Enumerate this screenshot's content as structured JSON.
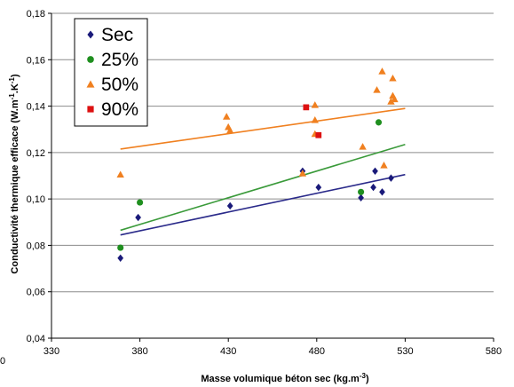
{
  "chart_data": {
    "type": "scatter",
    "xlabel": "Masse volumique béton sec (kg.m",
    "xlabel_sup": "-3",
    "xlabel_end": ")",
    "ylabel_parts": [
      "Conductivité thermique efficace (W.m",
      "-1",
      ".K",
      "-1",
      ")"
    ],
    "xlim": [
      330,
      580
    ],
    "ylim": [
      0.04,
      0.18
    ],
    "x_ticks": [
      "330",
      "380",
      "430",
      "480",
      "530",
      "580"
    ],
    "y_ticks": [
      "0,04",
      "0,06",
      "0,08",
      "0,10",
      "0,12",
      "0,14",
      "0,16",
      "0,18"
    ],
    "x_tick_values": [
      330,
      380,
      430,
      480,
      530,
      580
    ],
    "y_tick_values": [
      0.04,
      0.06,
      0.08,
      0.1,
      0.12,
      0.14,
      0.16,
      0.18
    ],
    "stray_label": "0",
    "grid": "horizontal",
    "legend_position": "top-left",
    "series": [
      {
        "name": "Sec",
        "marker": "diamond",
        "color": "#1a1a7a",
        "points": [
          [
            369,
            0.0745
          ],
          [
            379,
            0.092
          ],
          [
            431,
            0.097
          ],
          [
            472,
            0.112
          ],
          [
            481,
            0.105
          ],
          [
            505,
            0.1005
          ],
          [
            512,
            0.105
          ],
          [
            513,
            0.112
          ],
          [
            517,
            0.103
          ],
          [
            522,
            0.109
          ]
        ],
        "trend": [
          [
            369,
            0.0845
          ],
          [
            530,
            0.1105
          ]
        ],
        "trend_color": "#2a2a8a"
      },
      {
        "name": "25%",
        "marker": "circle",
        "color": "#1f8f1f",
        "points": [
          [
            369,
            0.079
          ],
          [
            380,
            0.0985
          ],
          [
            505,
            0.103
          ],
          [
            515,
            0.133
          ]
        ],
        "trend": [
          [
            369,
            0.0865
          ],
          [
            530,
            0.1235
          ]
        ],
        "trend_color": "#3a9a3a"
      },
      {
        "name": "50%",
        "marker": "triangle",
        "color": "#f08020",
        "points": [
          [
            369,
            0.1105
          ],
          [
            429,
            0.1355
          ],
          [
            430,
            0.131
          ],
          [
            431,
            0.1295
          ],
          [
            472,
            0.111
          ],
          [
            479,
            0.1405
          ],
          [
            479,
            0.134
          ],
          [
            479,
            0.128
          ],
          [
            506,
            0.1225
          ],
          [
            514,
            0.147
          ],
          [
            517,
            0.155
          ],
          [
            518,
            0.1145
          ],
          [
            522,
            0.142
          ],
          [
            523,
            0.152
          ],
          [
            523,
            0.1445
          ],
          [
            524,
            0.143
          ]
        ],
        "trend": [
          [
            369,
            0.1215
          ],
          [
            530,
            0.139
          ]
        ],
        "trend_color": "#f08020"
      },
      {
        "name": "90%",
        "marker": "square",
        "color": "#dd1111",
        "points": [
          [
            474,
            0.1395
          ],
          [
            481,
            0.1275
          ]
        ]
      }
    ]
  }
}
